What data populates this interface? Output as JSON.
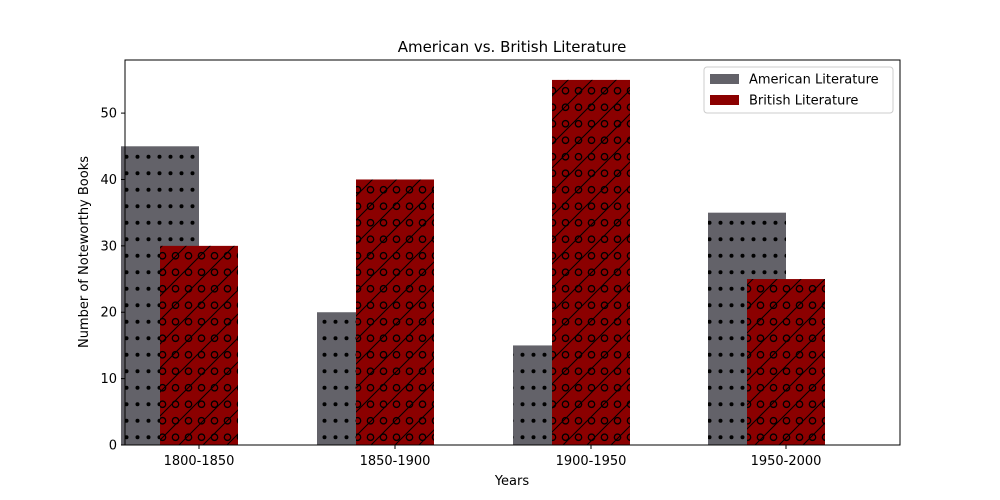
{
  "chart_data": {
    "type": "bar",
    "title": "American vs. British Literature",
    "xlabel": "Years",
    "ylabel": "Number of Noteworthy Books",
    "categories": [
      "1800-1850",
      "1850-1900",
      "1900-1950",
      "1950-2000"
    ],
    "series": [
      {
        "name": "American Literature",
        "values": [
          45,
          20,
          15,
          35
        ],
        "color": "#636269",
        "hatch": "dots"
      },
      {
        "name": "British Literature",
        "values": [
          30,
          40,
          55,
          25
        ],
        "color": "#8b0000",
        "hatch": "diagonal-circles"
      }
    ],
    "ylim": [
      0,
      58
    ],
    "yticks": [
      0,
      10,
      20,
      30,
      40,
      50
    ],
    "legend": "top-right",
    "grid": false
  }
}
